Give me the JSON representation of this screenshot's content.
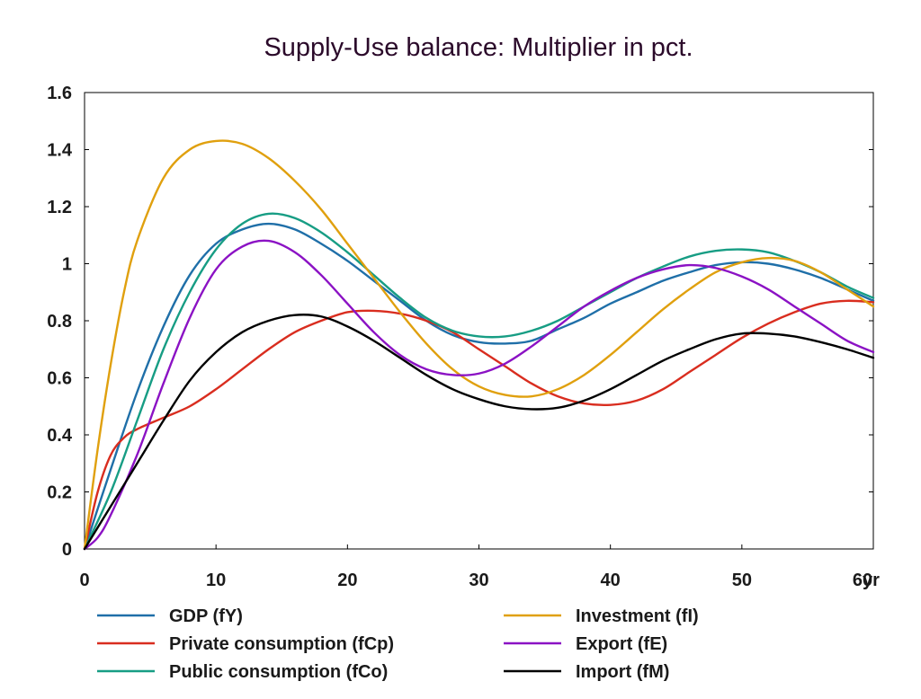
{
  "chart_data": {
    "type": "line",
    "title": "Supply-Use balance: Multiplier in pct.",
    "xlabel": "",
    "ylabel": "",
    "x_unit_label": "yr",
    "xlim": [
      0,
      60
    ],
    "ylim": [
      0,
      1.6
    ],
    "x_ticks": [
      0,
      10,
      20,
      30,
      40,
      50,
      60
    ],
    "y_ticks": [
      0,
      0.2,
      0.4,
      0.6,
      0.8,
      1,
      1.2,
      1.4,
      1.6
    ],
    "grid": false,
    "legend_position": "bottom",
    "series": [
      {
        "name": "GDP (fY)",
        "color": "#1f6fa8",
        "legend_column": 0,
        "points": [
          [
            0,
            0
          ],
          [
            2,
            0.28
          ],
          [
            4,
            0.55
          ],
          [
            6,
            0.78
          ],
          [
            8,
            0.96
          ],
          [
            10,
            1.07
          ],
          [
            12,
            1.12
          ],
          [
            14,
            1.14
          ],
          [
            16,
            1.12
          ],
          [
            18,
            1.07
          ],
          [
            20,
            1.01
          ],
          [
            22,
            0.94
          ],
          [
            24,
            0.87
          ],
          [
            26,
            0.8
          ],
          [
            28,
            0.75
          ],
          [
            30,
            0.725
          ],
          [
            32,
            0.72
          ],
          [
            34,
            0.73
          ],
          [
            36,
            0.77
          ],
          [
            38,
            0.81
          ],
          [
            40,
            0.86
          ],
          [
            42,
            0.9
          ],
          [
            44,
            0.94
          ],
          [
            46,
            0.97
          ],
          [
            48,
            0.995
          ],
          [
            50,
            1.005
          ],
          [
            52,
            1.0
          ],
          [
            54,
            0.98
          ],
          [
            56,
            0.95
          ],
          [
            58,
            0.91
          ],
          [
            60,
            0.87
          ]
        ]
      },
      {
        "name": "Private consumption (fCp)",
        "color": "#d92d1f",
        "legend_column": 0,
        "points": [
          [
            0,
            0
          ],
          [
            1,
            0.2
          ],
          [
            2,
            0.33
          ],
          [
            3,
            0.39
          ],
          [
            4,
            0.42
          ],
          [
            6,
            0.46
          ],
          [
            8,
            0.5
          ],
          [
            10,
            0.56
          ],
          [
            12,
            0.63
          ],
          [
            14,
            0.7
          ],
          [
            16,
            0.76
          ],
          [
            18,
            0.8
          ],
          [
            20,
            0.83
          ],
          [
            22,
            0.835
          ],
          [
            24,
            0.825
          ],
          [
            26,
            0.8
          ],
          [
            28,
            0.76
          ],
          [
            30,
            0.7
          ],
          [
            32,
            0.64
          ],
          [
            34,
            0.58
          ],
          [
            36,
            0.535
          ],
          [
            38,
            0.51
          ],
          [
            40,
            0.505
          ],
          [
            42,
            0.52
          ],
          [
            44,
            0.56
          ],
          [
            46,
            0.62
          ],
          [
            48,
            0.68
          ],
          [
            50,
            0.74
          ],
          [
            52,
            0.79
          ],
          [
            54,
            0.83
          ],
          [
            56,
            0.86
          ],
          [
            58,
            0.87
          ],
          [
            60,
            0.865
          ]
        ]
      },
      {
        "name": "Public consumption (fCo)",
        "color": "#179d84",
        "legend_column": 0,
        "points": [
          [
            0,
            0
          ],
          [
            2,
            0.2
          ],
          [
            4,
            0.45
          ],
          [
            6,
            0.7
          ],
          [
            8,
            0.9
          ],
          [
            10,
            1.05
          ],
          [
            12,
            1.14
          ],
          [
            14,
            1.175
          ],
          [
            16,
            1.16
          ],
          [
            18,
            1.11
          ],
          [
            20,
            1.04
          ],
          [
            22,
            0.96
          ],
          [
            24,
            0.88
          ],
          [
            26,
            0.81
          ],
          [
            28,
            0.765
          ],
          [
            30,
            0.745
          ],
          [
            32,
            0.745
          ],
          [
            34,
            0.765
          ],
          [
            36,
            0.8
          ],
          [
            38,
            0.85
          ],
          [
            40,
            0.9
          ],
          [
            42,
            0.95
          ],
          [
            44,
            0.99
          ],
          [
            46,
            1.025
          ],
          [
            48,
            1.045
          ],
          [
            50,
            1.05
          ],
          [
            52,
            1.04
          ],
          [
            54,
            1.01
          ],
          [
            56,
            0.97
          ],
          [
            58,
            0.92
          ],
          [
            60,
            0.88
          ]
        ]
      },
      {
        "name": "Investment (fI)",
        "color": "#e0a00e",
        "legend_column": 1,
        "points": [
          [
            0,
            0
          ],
          [
            1,
            0.35
          ],
          [
            2,
            0.65
          ],
          [
            3,
            0.9
          ],
          [
            4,
            1.08
          ],
          [
            6,
            1.3
          ],
          [
            8,
            1.4
          ],
          [
            10,
            1.43
          ],
          [
            12,
            1.42
          ],
          [
            14,
            1.37
          ],
          [
            16,
            1.29
          ],
          [
            18,
            1.19
          ],
          [
            20,
            1.07
          ],
          [
            22,
            0.95
          ],
          [
            24,
            0.83
          ],
          [
            26,
            0.72
          ],
          [
            28,
            0.63
          ],
          [
            30,
            0.57
          ],
          [
            32,
            0.54
          ],
          [
            34,
            0.535
          ],
          [
            36,
            0.56
          ],
          [
            38,
            0.61
          ],
          [
            40,
            0.68
          ],
          [
            42,
            0.76
          ],
          [
            44,
            0.84
          ],
          [
            46,
            0.91
          ],
          [
            48,
            0.97
          ],
          [
            50,
            1.005
          ],
          [
            52,
            1.02
          ],
          [
            54,
            1.01
          ],
          [
            56,
            0.97
          ],
          [
            58,
            0.91
          ],
          [
            60,
            0.85
          ]
        ]
      },
      {
        "name": "Export (fE)",
        "color": "#8b12c4",
        "legend_column": 1,
        "points": [
          [
            0,
            0
          ],
          [
            1,
            0.04
          ],
          [
            2,
            0.12
          ],
          [
            4,
            0.33
          ],
          [
            6,
            0.58
          ],
          [
            8,
            0.81
          ],
          [
            10,
            0.98
          ],
          [
            12,
            1.06
          ],
          [
            14,
            1.08
          ],
          [
            16,
            1.04
          ],
          [
            18,
            0.96
          ],
          [
            20,
            0.86
          ],
          [
            22,
            0.76
          ],
          [
            24,
            0.68
          ],
          [
            26,
            0.63
          ],
          [
            28,
            0.61
          ],
          [
            30,
            0.615
          ],
          [
            32,
            0.65
          ],
          [
            34,
            0.71
          ],
          [
            36,
            0.78
          ],
          [
            38,
            0.85
          ],
          [
            40,
            0.905
          ],
          [
            42,
            0.95
          ],
          [
            44,
            0.98
          ],
          [
            46,
            0.995
          ],
          [
            48,
            0.985
          ],
          [
            50,
            0.955
          ],
          [
            52,
            0.91
          ],
          [
            54,
            0.85
          ],
          [
            56,
            0.79
          ],
          [
            58,
            0.73
          ],
          [
            60,
            0.69
          ]
        ]
      },
      {
        "name": "Import (fM)",
        "color": "#000000",
        "legend_column": 1,
        "points": [
          [
            0,
            0
          ],
          [
            2,
            0.15
          ],
          [
            4,
            0.3
          ],
          [
            6,
            0.45
          ],
          [
            8,
            0.59
          ],
          [
            10,
            0.69
          ],
          [
            12,
            0.76
          ],
          [
            14,
            0.8
          ],
          [
            16,
            0.82
          ],
          [
            18,
            0.815
          ],
          [
            20,
            0.78
          ],
          [
            22,
            0.73
          ],
          [
            24,
            0.67
          ],
          [
            26,
            0.61
          ],
          [
            28,
            0.56
          ],
          [
            30,
            0.525
          ],
          [
            32,
            0.5
          ],
          [
            34,
            0.49
          ],
          [
            36,
            0.495
          ],
          [
            38,
            0.52
          ],
          [
            40,
            0.56
          ],
          [
            42,
            0.61
          ],
          [
            44,
            0.66
          ],
          [
            46,
            0.7
          ],
          [
            48,
            0.735
          ],
          [
            50,
            0.755
          ],
          [
            52,
            0.755
          ],
          [
            54,
            0.745
          ],
          [
            56,
            0.725
          ],
          [
            58,
            0.7
          ],
          [
            60,
            0.67
          ]
        ]
      }
    ]
  }
}
